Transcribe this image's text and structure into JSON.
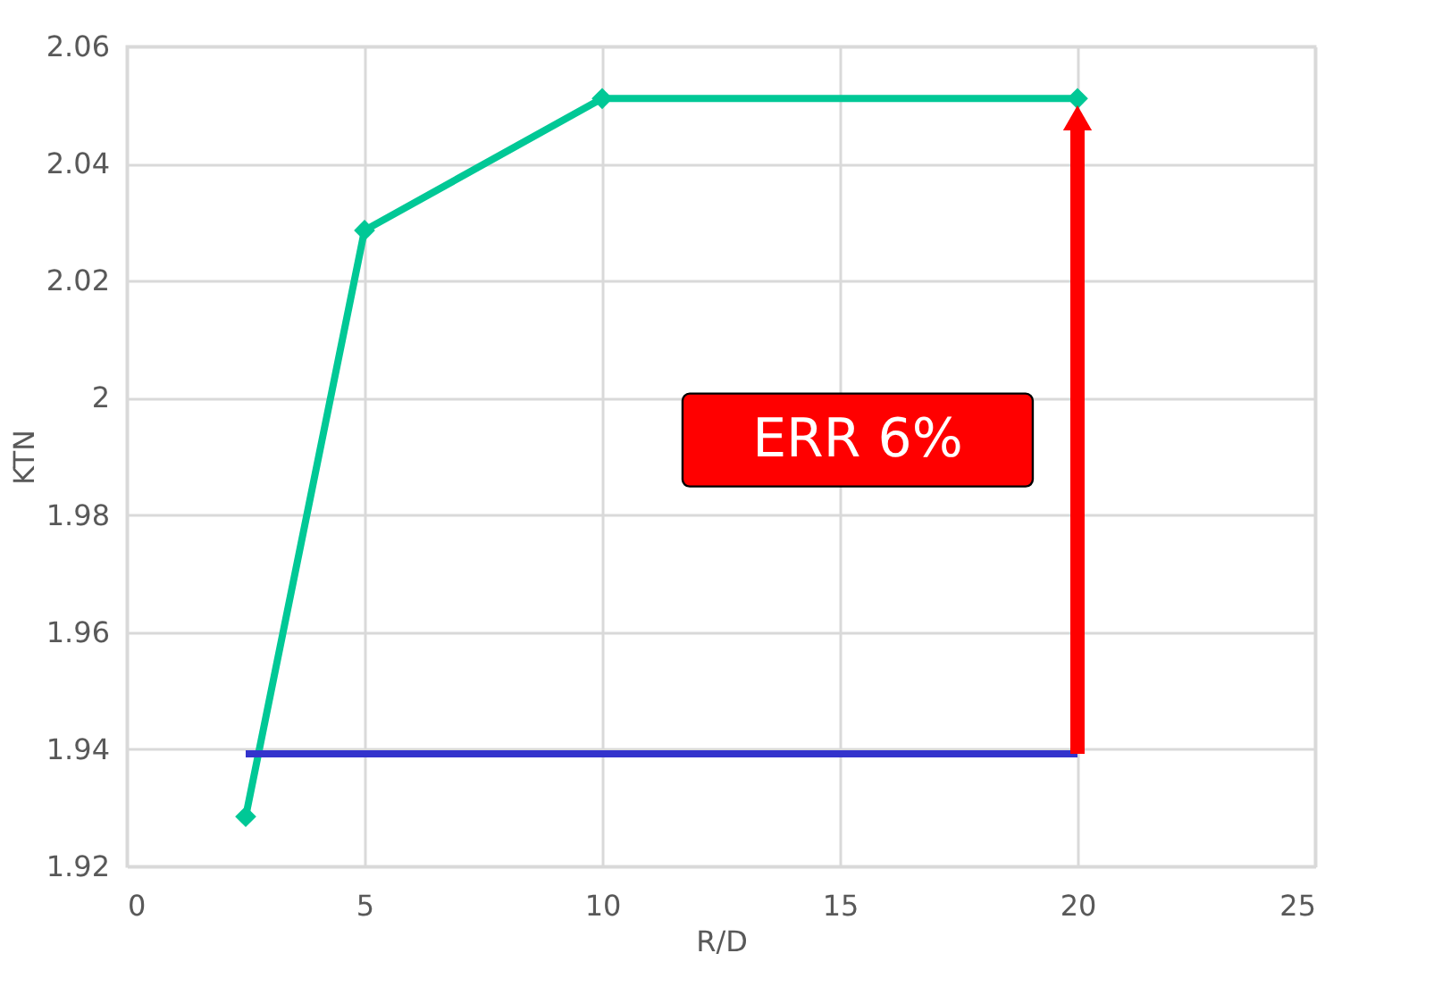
{
  "chart_data": {
    "type": "line",
    "xlabel": "R/D",
    "ylabel": "KTN",
    "xlim": [
      0,
      25
    ],
    "xticks": [
      0,
      5,
      10,
      15,
      20,
      25
    ],
    "ylim": [
      1.92,
      2.06
    ],
    "yticks": [
      1.92,
      1.94,
      1.96,
      1.98,
      2,
      2.02,
      2.04,
      2.06
    ],
    "grid": true,
    "series": [
      {
        "color": "#00c896",
        "x": [
          2.5,
          5,
          10,
          20
        ],
        "values": [
          1.9285,
          2.0286,
          2.0511,
          2.0511
        ],
        "marker": "diamond"
      },
      {
        "color": "#3333cc",
        "x": [
          2.5,
          20
        ],
        "values": [
          1.9392,
          1.9392
        ],
        "marker": "none"
      },
      {
        "color": "#ff0000",
        "x": [
          20,
          20
        ],
        "values": [
          1.9392,
          2.0478
        ],
        "marker": "triangle"
      }
    ],
    "annotations": [
      "ERR 6%"
    ]
  }
}
